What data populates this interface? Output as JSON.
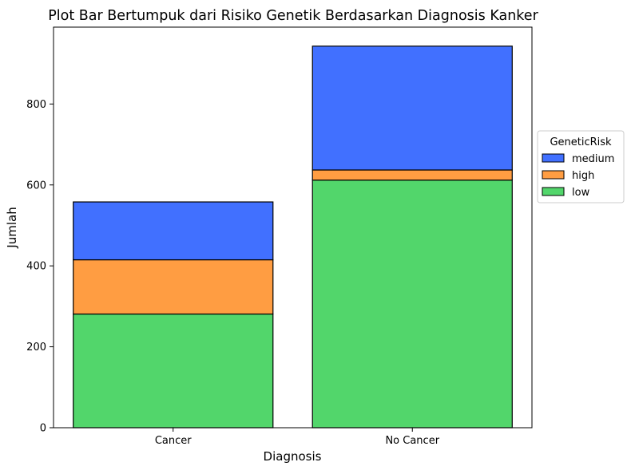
{
  "chart_data": {
    "type": "bar",
    "stacked": true,
    "title": "Plot Bar Bertumpuk dari Risiko Genetik Berdasarkan Diagnosis Kanker",
    "xlabel": "Diagnosis",
    "ylabel": "Jumlah",
    "categories": [
      "Cancer",
      "No Cancer"
    ],
    "series": [
      {
        "name": "low",
        "color": "#52d66b",
        "values": [
          281,
          612
        ]
      },
      {
        "name": "high",
        "color": "#ff9d42",
        "values": [
          134,
          25
        ]
      },
      {
        "name": "medium",
        "color": "#4170ff",
        "values": [
          143,
          306
        ]
      }
    ],
    "ylim": [
      0,
      990
    ],
    "yticks": [
      0,
      200,
      400,
      600,
      800
    ],
    "grid": false,
    "legend": {
      "title": "GeneticRisk",
      "placement": "right",
      "order": [
        "medium",
        "high",
        "low"
      ]
    }
  }
}
